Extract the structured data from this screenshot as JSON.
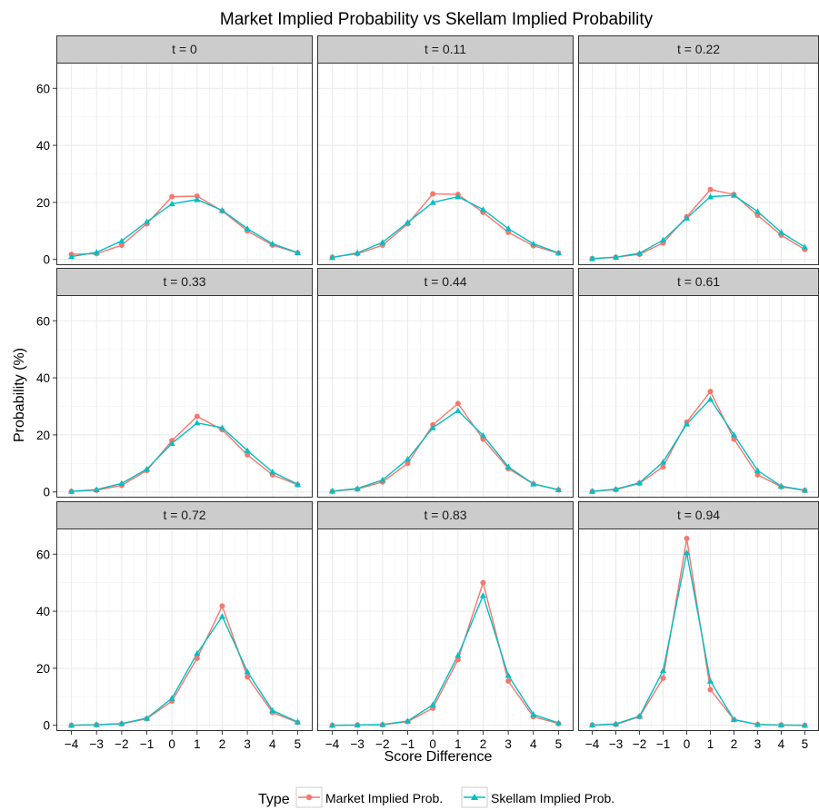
{
  "chart_data": {
    "type": "line",
    "title": "Market Implied Probability vs Skellam Implied Probability",
    "xlabel": "Score Difference",
    "ylabel": "Probability (%)",
    "x": [
      -4,
      -3,
      -2,
      -1,
      0,
      1,
      2,
      3,
      4,
      5
    ],
    "x_tick_labels": [
      "−4",
      "−3",
      "−2",
      "−1",
      "0",
      "1",
      "2",
      "3",
      "4",
      "5"
    ],
    "ylim": [
      -2,
      69
    ],
    "y_ticks": [
      0,
      20,
      40,
      60
    ],
    "grid": true,
    "legend": {
      "title": "Type",
      "position": "bottom",
      "entries": [
        "Market Implied Prob.",
        "Skellam Implied Prob."
      ]
    },
    "colors": {
      "market": "#F8766D",
      "skellam": "#00BFC4"
    },
    "panels": [
      {
        "label": "t = 0",
        "series": [
          {
            "name": "Market Implied Prob.",
            "values": [
              1.8,
              2.0,
              5.0,
              12.5,
              22.0,
              22.2,
              17.0,
              10.0,
              5.0,
              2.3
            ]
          },
          {
            "name": "Skellam Implied Prob.",
            "values": [
              1.0,
              2.5,
              6.5,
              13.2,
              19.5,
              21.0,
              17.2,
              10.8,
              5.5,
              2.4
            ]
          }
        ]
      },
      {
        "label": "t = 0.11",
        "series": [
          {
            "name": "Market Implied Prob.",
            "values": [
              0.8,
              2.0,
              5.0,
              12.5,
              23.0,
              22.8,
              16.5,
              9.5,
              4.8,
              2.2
            ]
          },
          {
            "name": "Skellam Implied Prob.",
            "values": [
              0.7,
              2.3,
              6.0,
              13.0,
              20.0,
              22.0,
              17.5,
              10.8,
              5.5,
              2.3
            ]
          }
        ]
      },
      {
        "label": "t = 0.22",
        "series": [
          {
            "name": "Market Implied Prob.",
            "values": [
              0.3,
              0.8,
              1.8,
              5.8,
              15.0,
              24.5,
              22.8,
              15.5,
              8.5,
              3.5
            ]
          },
          {
            "name": "Skellam Implied Prob.",
            "values": [
              0.3,
              0.8,
              2.2,
              6.8,
              14.5,
              22.0,
              22.5,
              16.8,
              9.5,
              4.3
            ]
          }
        ]
      },
      {
        "label": "t = 0.33",
        "series": [
          {
            "name": "Market Implied Prob.",
            "values": [
              0.2,
              0.6,
              2.3,
              7.5,
              18.0,
              26.5,
              21.8,
              13.0,
              6.0,
              2.5
            ]
          },
          {
            "name": "Skellam Implied Prob.",
            "values": [
              0.2,
              0.8,
              3.0,
              8.0,
              17.0,
              24.2,
              22.5,
              14.5,
              7.0,
              2.7
            ]
          }
        ]
      },
      {
        "label": "t = 0.44",
        "series": [
          {
            "name": "Market Implied Prob.",
            "values": [
              0.2,
              1.0,
              3.5,
              10.0,
              23.5,
              31.0,
              18.5,
              8.2,
              2.8,
              0.7
            ]
          },
          {
            "name": "Skellam Implied Prob.",
            "values": [
              0.3,
              1.2,
              4.2,
              11.5,
              22.5,
              28.5,
              19.8,
              8.8,
              2.8,
              0.8
            ]
          }
        ]
      },
      {
        "label": "t = 0.61",
        "series": [
          {
            "name": "Market Implied Prob.",
            "values": [
              0.2,
              0.8,
              3.0,
              8.8,
              24.5,
              35.2,
              18.5,
              6.0,
              1.8,
              0.5
            ]
          },
          {
            "name": "Skellam Implied Prob.",
            "values": [
              0.2,
              1.0,
              3.2,
              10.5,
              23.8,
              32.5,
              20.0,
              7.5,
              2.0,
              0.6
            ]
          }
        ]
      },
      {
        "label": "t = 0.72",
        "series": [
          {
            "name": "Market Implied Prob.",
            "values": [
              0.0,
              0.2,
              0.5,
              2.3,
              8.5,
              23.5,
              41.8,
              17.0,
              4.5,
              1.0
            ]
          },
          {
            "name": "Skellam Implied Prob.",
            "values": [
              0.0,
              0.2,
              0.6,
              2.5,
              9.5,
              25.2,
              38.2,
              18.8,
              5.2,
              1.2
            ]
          }
        ]
      },
      {
        "label": "t = 0.83",
        "series": [
          {
            "name": "Market Implied Prob.",
            "values": [
              0.0,
              0.1,
              0.2,
              1.3,
              6.0,
              23.0,
              50.0,
              15.5,
              3.0,
              0.6
            ]
          },
          {
            "name": "Skellam Implied Prob.",
            "values": [
              0.0,
              0.1,
              0.3,
              1.5,
              7.2,
              24.5,
              45.5,
              17.5,
              3.8,
              0.8
            ]
          }
        ]
      },
      {
        "label": "t = 0.94",
        "series": [
          {
            "name": "Market Implied Prob.",
            "values": [
              0.1,
              0.3,
              3.0,
              16.5,
              65.5,
              12.5,
              2.0,
              0.3,
              0.1,
              0.0
            ]
          },
          {
            "name": "Skellam Implied Prob.",
            "values": [
              0.1,
              0.5,
              3.2,
              19.2,
              60.5,
              15.5,
              2.0,
              0.3,
              0.1,
              0.0
            ]
          }
        ]
      }
    ]
  }
}
